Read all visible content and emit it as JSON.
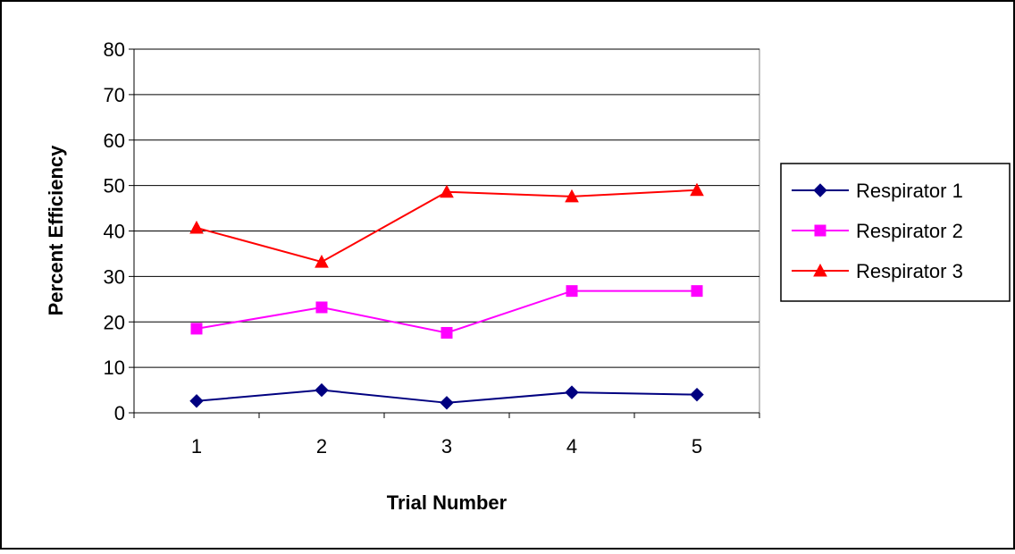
{
  "chart_data": {
    "type": "line",
    "title": "",
    "xlabel": "Trial Number",
    "ylabel": "Percent Efficiency",
    "categories": [
      "1",
      "2",
      "3",
      "4",
      "5"
    ],
    "ylim": [
      0,
      80
    ],
    "yticks": [
      0,
      10,
      20,
      30,
      40,
      50,
      60,
      70,
      80
    ],
    "grid": "horizontal",
    "legend_position": "right",
    "series": [
      {
        "name": "Respirator 1",
        "values": [
          2.6,
          5.0,
          2.2,
          4.5,
          4.0
        ],
        "color": "#000080",
        "marker": "diamond"
      },
      {
        "name": "Respirator 2",
        "values": [
          18.5,
          23.2,
          17.6,
          26.8,
          26.8
        ],
        "color": "#FF00FF",
        "marker": "square"
      },
      {
        "name": "Respirator 3",
        "values": [
          40.7,
          33.2,
          48.6,
          47.6,
          49.0
        ],
        "color": "#FF0000",
        "marker": "triangle"
      }
    ]
  }
}
